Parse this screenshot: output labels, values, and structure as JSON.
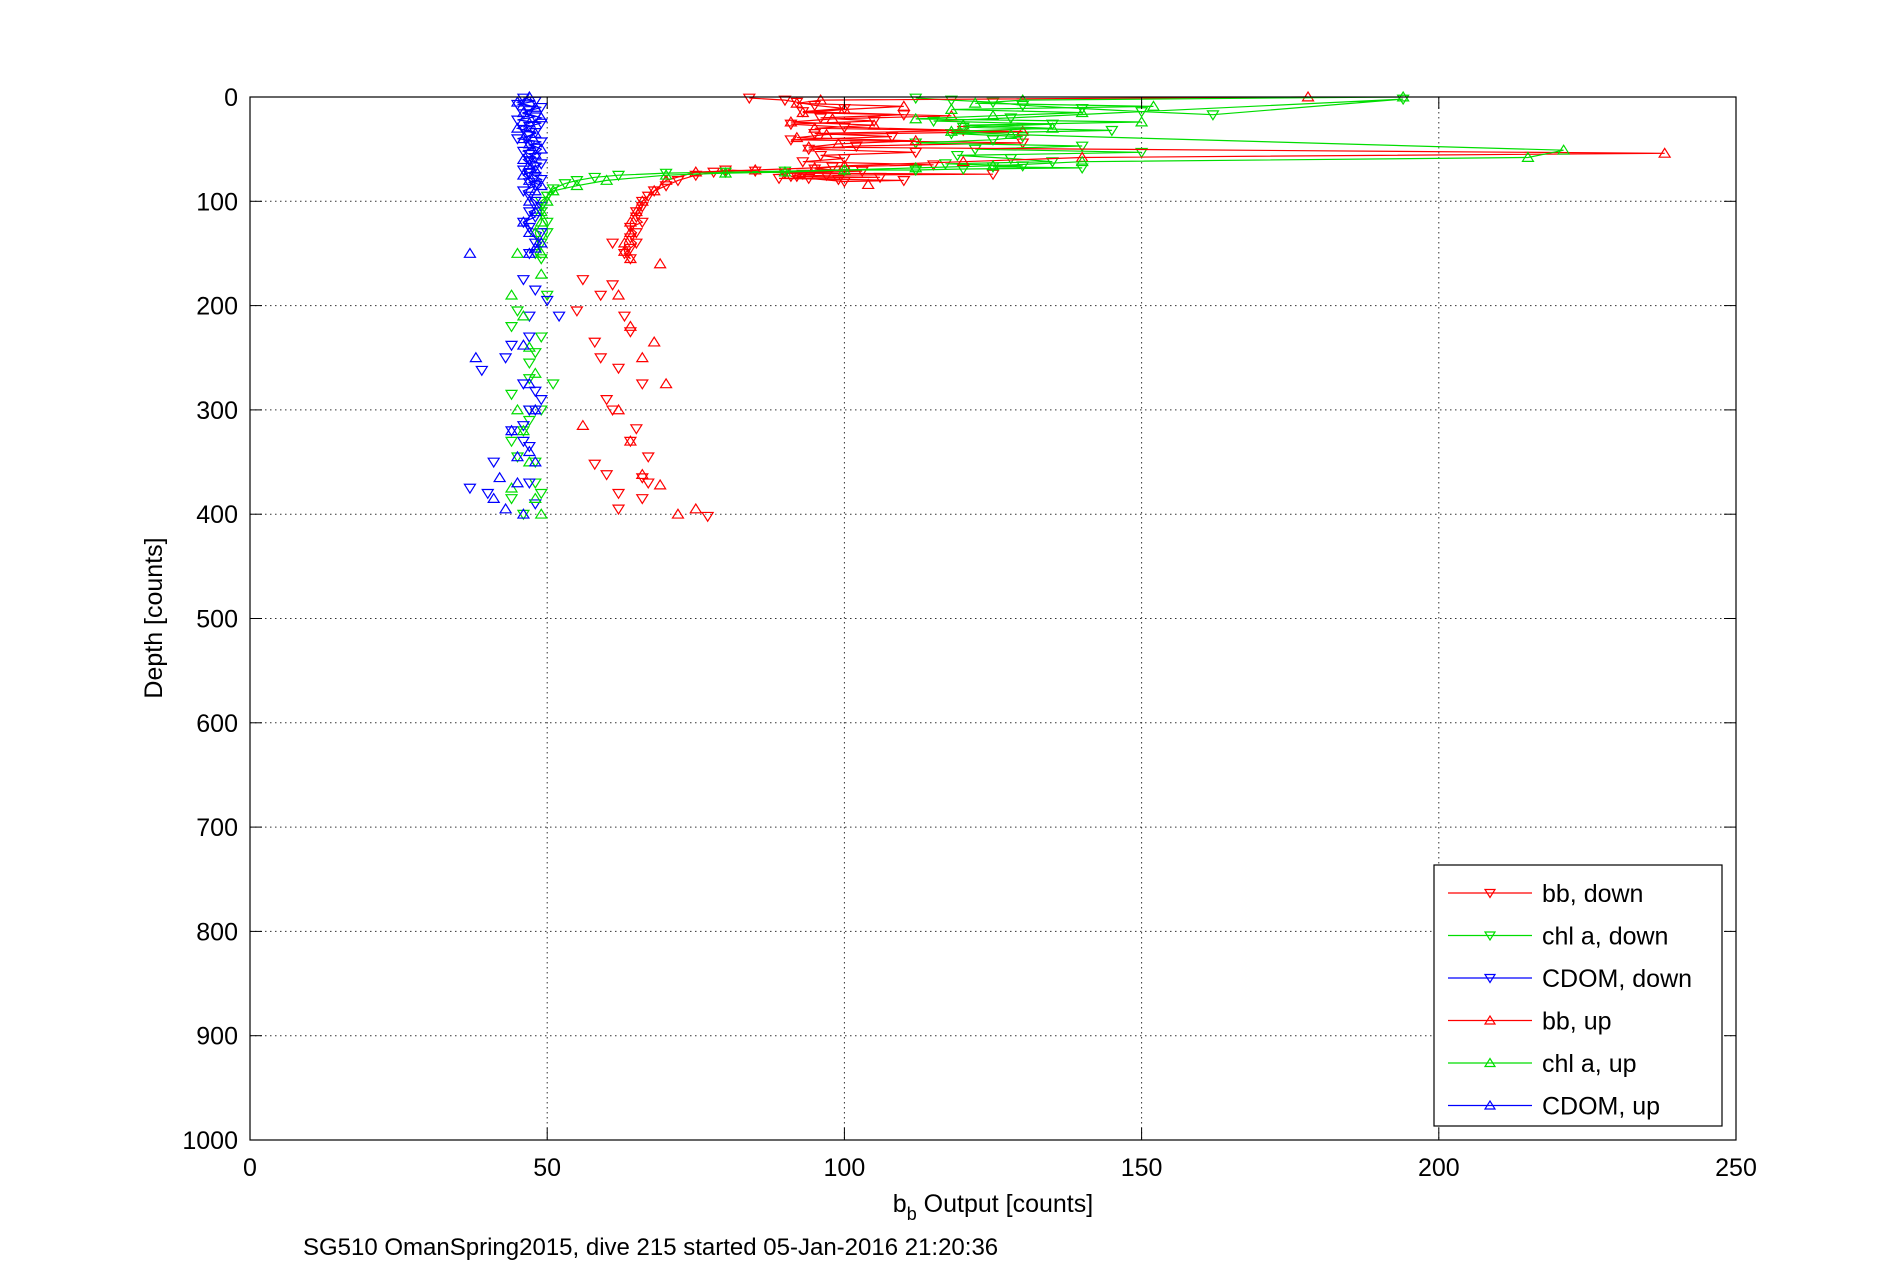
{
  "chart_data": {
    "type": "scatter",
    "title": "",
    "xlabel_main": "b",
    "xlabel_sub": "b",
    "xlabel_rest": " Output [counts]",
    "ylabel": "Depth [counts]",
    "footer": "SG510 OmanSpring2015, dive 215 started 05-Jan-2016 21:20:36",
    "xlim": [
      0,
      250
    ],
    "ylim": [
      0,
      1000
    ],
    "y_reversed": true,
    "grid": true,
    "legend_position": "bottom-right",
    "xticks": [
      "0",
      "50",
      "100",
      "150",
      "200",
      "250"
    ],
    "yticks": [
      "0",
      "100",
      "200",
      "300",
      "400",
      "500",
      "600",
      "700",
      "800",
      "900",
      "1000"
    ],
    "colors": {
      "bb": "#ff0000",
      "chl": "#00dd00",
      "cdom": "#0000ff"
    },
    "series": [
      {
        "name": "bb, down",
        "color": "#ff0000",
        "marker": "triangle-down",
        "line": true,
        "x": [
          84,
          90,
          92,
          95,
          100,
          93,
          110,
          96,
          105,
          91,
          100,
          120,
          95,
          108,
          91,
          130,
          102,
          94,
          112,
          96,
          100,
          93,
          115,
          98,
          95,
          103,
          90,
          125,
          97,
          92,
          106,
          89,
          99,
          110,
          100,
          94,
          91,
          93,
          85,
          80,
          78,
          75,
          72,
          70,
          68,
          67,
          66,
          66,
          65,
          65,
          66,
          64,
          65,
          64,
          65,
          64,
          63,
          64
        ],
        "y": [
          1,
          3,
          5,
          8,
          11,
          14,
          17,
          20,
          23,
          26,
          29,
          32,
          35,
          38,
          41,
          44,
          47,
          50,
          53,
          56,
          59,
          62,
          65,
          67,
          69,
          71,
          73,
          74,
          75,
          76,
          77,
          78,
          79,
          80,
          81,
          78,
          76,
          74,
          71,
          70,
          72,
          75,
          80,
          85,
          90,
          95,
          100,
          105,
          110,
          115,
          120,
          125,
          130,
          135,
          140,
          145,
          150,
          155
        ],
        "scatter_x": [
          61,
          56,
          61,
          59,
          55,
          63,
          64,
          58,
          59,
          62,
          66,
          60,
          61,
          65,
          64,
          67,
          58,
          60,
          66,
          67,
          62,
          66,
          62,
          77
        ],
        "scatter_y": [
          140,
          175,
          180,
          190,
          205,
          210,
          225,
          235,
          250,
          260,
          275,
          290,
          300,
          318,
          330,
          345,
          352,
          362,
          365,
          370,
          380,
          385,
          395,
          402
        ]
      },
      {
        "name": "chl a, down",
        "color": "#00dd00",
        "marker": "triangle-down",
        "line": true,
        "x": [
          112,
          118,
          125,
          130,
          140,
          150,
          162,
          194,
          128,
          115,
          135,
          120,
          145,
          118,
          130,
          125,
          112,
          140,
          122,
          150,
          119,
          128,
          135,
          117,
          130,
          125,
          140,
          120,
          112,
          100,
          90,
          80,
          70,
          62,
          58,
          55,
          53,
          51,
          50,
          49,
          49,
          50,
          50,
          49,
          48,
          49
        ],
        "y": [
          1,
          3,
          5,
          8,
          11,
          14,
          17,
          2,
          20,
          23,
          26,
          29,
          32,
          35,
          38,
          41,
          44,
          47,
          50,
          53,
          56,
          59,
          62,
          64,
          66,
          67,
          68,
          69,
          70,
          70,
          71,
          72,
          73,
          75,
          77,
          80,
          83,
          88,
          95,
          100,
          110,
          120,
          130,
          140,
          150,
          155
        ],
        "scatter_x": [
          50,
          45,
          44,
          49,
          48,
          47,
          47,
          51,
          44,
          47,
          49,
          47,
          46,
          44,
          45,
          48,
          48,
          49,
          44,
          46
        ],
        "scatter_y": [
          190,
          205,
          220,
          230,
          245,
          255,
          270,
          275,
          285,
          300,
          300,
          310,
          320,
          330,
          345,
          350,
          370,
          380,
          385,
          400
        ]
      },
      {
        "name": "CDOM, down",
        "color": "#0000ff",
        "marker": "triangle-down",
        "line": true,
        "x": [
          46,
          48,
          45,
          49,
          47,
          46,
          48,
          45,
          49,
          47,
          46,
          48,
          47,
          45,
          49,
          47,
          48,
          46,
          47,
          48,
          47,
          49,
          48,
          46,
          47,
          48,
          49,
          47,
          48,
          46,
          47,
          48,
          49,
          47,
          48,
          46,
          47,
          49,
          48,
          47
        ],
        "y": [
          1,
          4,
          7,
          10,
          13,
          16,
          19,
          22,
          25,
          28,
          31,
          34,
          37,
          40,
          43,
          46,
          49,
          52,
          55,
          58,
          61,
          64,
          67,
          70,
          73,
          76,
          79,
          82,
          85,
          90,
          95,
          100,
          105,
          110,
          115,
          120,
          125,
          130,
          140,
          150
        ],
        "scatter_x": [
          46,
          48,
          47,
          50,
          52,
          47,
          44,
          39,
          43,
          46,
          48,
          49,
          47,
          46,
          44,
          47,
          41,
          37,
          47,
          48,
          48,
          46,
          40
        ],
        "scatter_y": [
          175,
          185,
          210,
          195,
          210,
          230,
          238,
          262,
          250,
          275,
          282,
          290,
          300,
          315,
          320,
          335,
          350,
          375,
          370,
          390,
          300,
          330,
          380
        ]
      },
      {
        "name": "bb, up",
        "color": "#ff0000",
        "marker": "triangle-up",
        "line": true,
        "x": [
          178,
          96,
          92,
          110,
          100,
          93,
          118,
          98,
          91,
          105,
          95,
          130,
          97,
          92,
          112,
          99,
          94,
          238,
          140,
          120,
          100,
          95,
          85,
          75,
          70,
          68,
          66,
          65,
          64,
          64,
          63,
          63,
          64
        ],
        "y": [
          0,
          3,
          6,
          9,
          12,
          15,
          18,
          21,
          24,
          27,
          30,
          33,
          36,
          39,
          42,
          45,
          48,
          54,
          58,
          62,
          66,
          68,
          70,
          72,
          80,
          90,
          100,
          110,
          120,
          130,
          140,
          148,
          155
        ],
        "scatter_x": [
          69,
          62,
          64,
          68,
          66,
          70,
          62,
          56,
          64,
          66,
          69,
          75,
          72,
          104
        ],
        "scatter_y": [
          160,
          190,
          220,
          235,
          250,
          275,
          300,
          315,
          330,
          362,
          372,
          395,
          400,
          84
        ]
      },
      {
        "name": "chl a, up",
        "color": "#00dd00",
        "marker": "triangle-up",
        "line": true,
        "x": [
          194,
          130,
          122,
          152,
          118,
          140,
          125,
          112,
          150,
          120,
          135,
          118,
          128,
          221,
          215,
          140,
          125,
          112,
          100,
          90,
          80,
          70,
          60,
          55,
          51,
          50,
          49,
          49,
          48,
          49
        ],
        "y": [
          0,
          3,
          6,
          9,
          12,
          15,
          18,
          21,
          24,
          27,
          30,
          33,
          36,
          51,
          58,
          62,
          66,
          68,
          70,
          72,
          73,
          75,
          80,
          85,
          90,
          100,
          110,
          120,
          130,
          150
        ],
        "scatter_x": [
          45,
          44,
          49,
          46,
          47,
          48,
          45,
          46,
          47,
          44,
          48,
          49
        ],
        "scatter_y": [
          150,
          190,
          170,
          210,
          240,
          265,
          300,
          320,
          350,
          375,
          385,
          400
        ]
      },
      {
        "name": "CDOM, up",
        "color": "#0000ff",
        "marker": "triangle-up",
        "line": true,
        "x": [
          47,
          45,
          48,
          46,
          49,
          47,
          45,
          48,
          46,
          47,
          49,
          48,
          46,
          47,
          48,
          46,
          47,
          49,
          48,
          47,
          48,
          46,
          47,
          49,
          48,
          47
        ],
        "y": [
          0,
          5,
          10,
          15,
          20,
          25,
          30,
          35,
          40,
          45,
          50,
          55,
          60,
          65,
          70,
          75,
          80,
          85,
          90,
          100,
          110,
          120,
          130,
          140,
          145,
          150
        ],
        "scatter_x": [
          37,
          38,
          46,
          47,
          44,
          45,
          48,
          47,
          42,
          45,
          48,
          43,
          46,
          41
        ],
        "scatter_y": [
          150,
          250,
          238,
          275,
          320,
          345,
          350,
          340,
          365,
          370,
          300,
          395,
          400,
          385
        ]
      }
    ]
  }
}
